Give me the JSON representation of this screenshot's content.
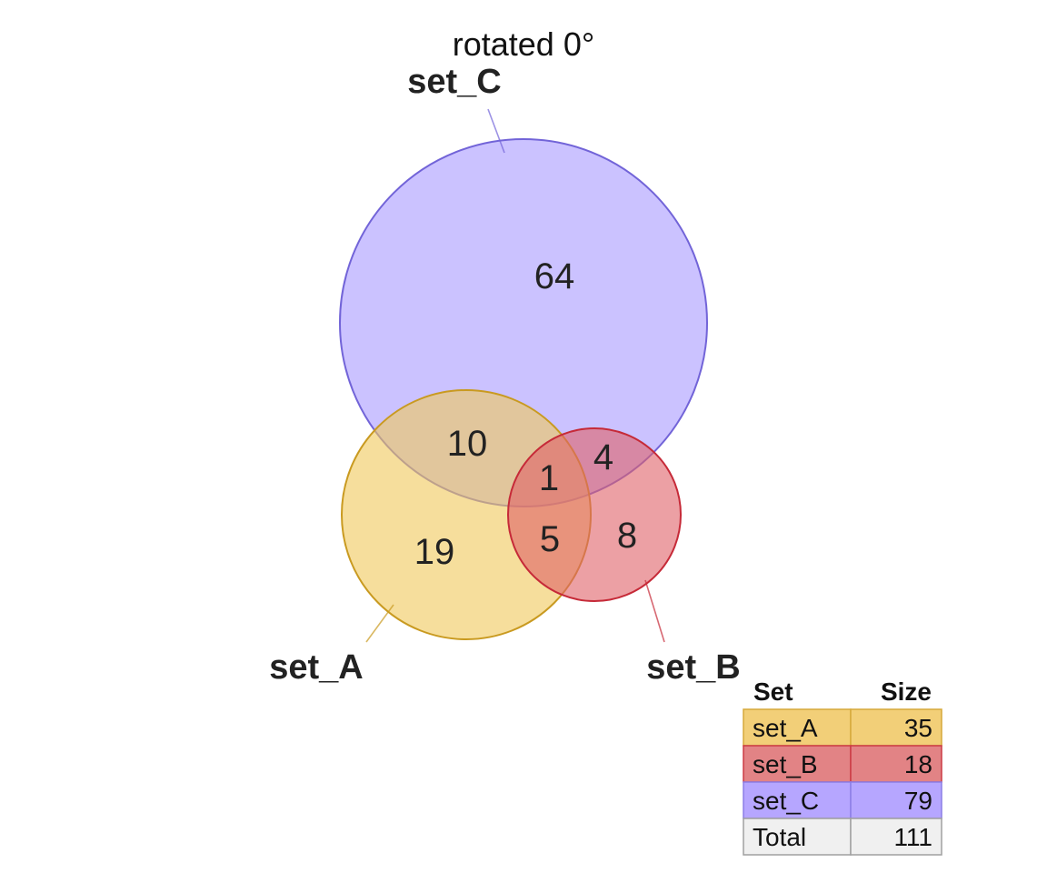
{
  "title": "rotated 0°",
  "sets": [
    {
      "id": "A",
      "name": "set_A",
      "size": 35,
      "fill": "#f0c85a",
      "stroke": "#c99a20",
      "table_fill": "#f2cf78",
      "table_stroke": "#d6a93a"
    },
    {
      "id": "B",
      "name": "set_B",
      "size": 18,
      "fill": "#e06068",
      "stroke": "#c62a38",
      "table_fill": "#e28385",
      "table_stroke": "#cc3b45"
    },
    {
      "id": "C",
      "name": "set_C",
      "size": 79,
      "fill": "#a99aff",
      "stroke": "#7264d8",
      "table_fill": "#b6a6ff",
      "table_stroke": "#8c7ee6"
    }
  ],
  "regions": [
    {
      "sets": "C",
      "value": "64"
    },
    {
      "sets": "AC",
      "value": "10"
    },
    {
      "sets": "BC",
      "value": "4"
    },
    {
      "sets": "ABC",
      "value": "1"
    },
    {
      "sets": "A",
      "value": "19"
    },
    {
      "sets": "AB",
      "value": "5"
    },
    {
      "sets": "B",
      "value": "8"
    }
  ],
  "table": {
    "header_set": "Set",
    "header_size": "Size",
    "rows": [
      {
        "set": "set_A",
        "size": "35"
      },
      {
        "set": "set_B",
        "size": "18"
      },
      {
        "set": "set_C",
        "size": "79"
      }
    ],
    "total_label": "Total",
    "total_value": "111",
    "total_fill": "#f0f0f0",
    "total_stroke": "#a0a0a0"
  }
}
